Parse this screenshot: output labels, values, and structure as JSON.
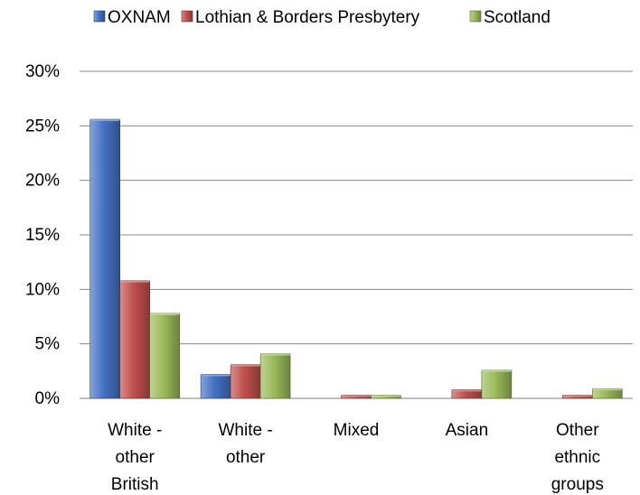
{
  "chart_data": {
    "type": "bar",
    "categories": [
      [
        "White -",
        "other",
        "British"
      ],
      [
        "White -",
        "other"
      ],
      [
        "Mixed"
      ],
      [
        "Asian"
      ],
      [
        "Other",
        "ethnic",
        "groups"
      ]
    ],
    "series": [
      {
        "name": "OXNAM",
        "color": "#4472C4",
        "values": [
          25.6,
          2.2,
          0.0,
          0.0,
          0.0
        ]
      },
      {
        "name": "Lothian & Borders Presbytery",
        "color": "#C0504D",
        "values": [
          10.8,
          3.1,
          0.3,
          0.8,
          0.3
        ]
      },
      {
        "name": "Scotland",
        "color": "#9BBB59",
        "values": [
          7.8,
          4.1,
          0.3,
          2.6,
          0.9
        ]
      }
    ],
    "y_ticks": [
      "0%",
      "5%",
      "10%",
      "15%",
      "20%",
      "25%",
      "30%"
    ],
    "ylim": [
      0,
      30
    ],
    "legend_position": "top",
    "grid": true
  }
}
